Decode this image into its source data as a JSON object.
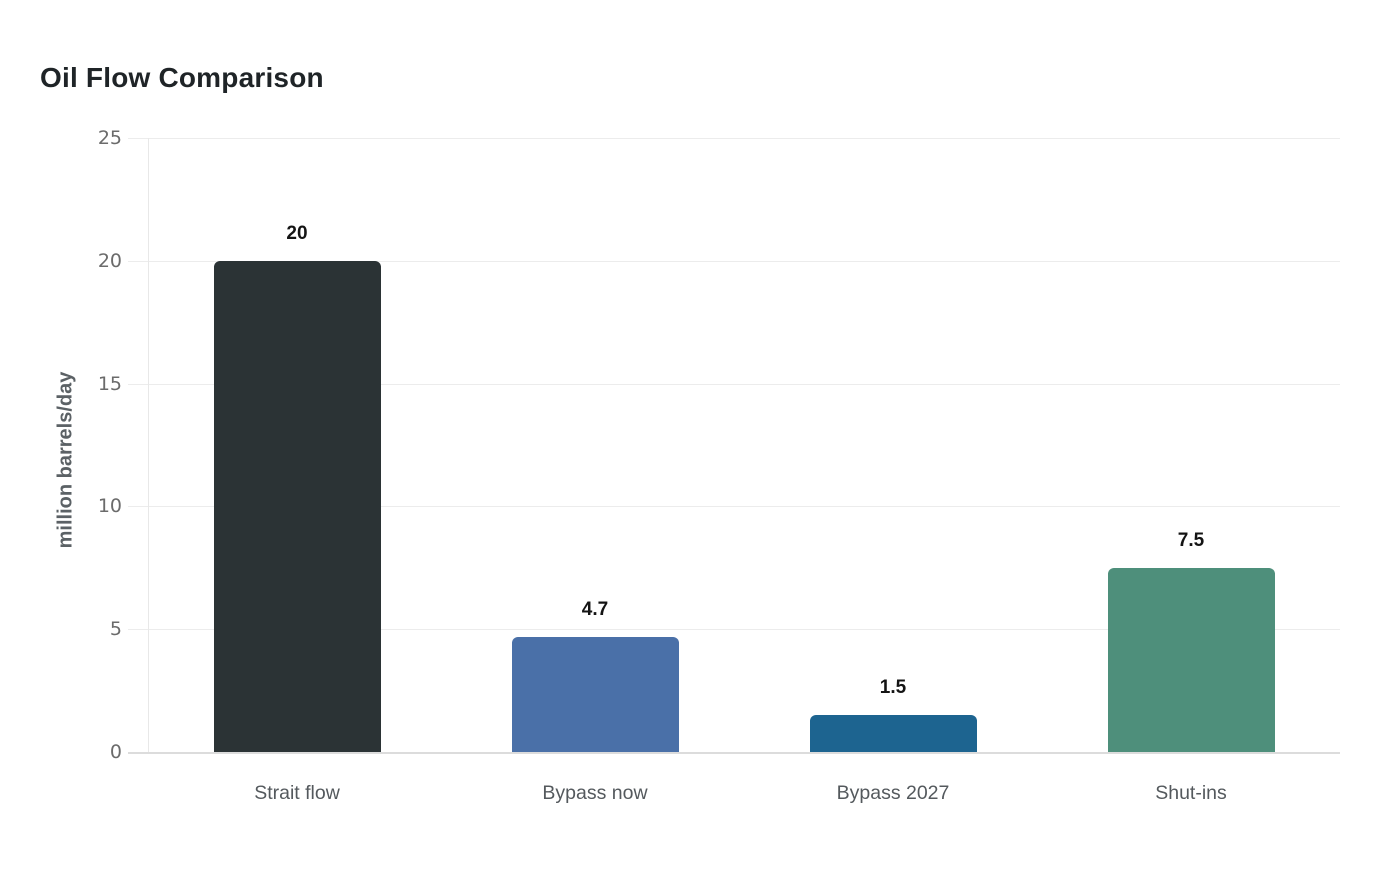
{
  "chart_data": {
    "type": "bar",
    "title": "Oil Flow Comparison",
    "categories": [
      "Strait flow",
      "Bypass now",
      "Bypass 2027",
      "Shut-ins"
    ],
    "values": [
      20,
      4.7,
      1.5,
      7.5
    ],
    "value_labels": [
      "20",
      "4.7",
      "1.5",
      "7.5"
    ],
    "bar_colors": [
      "#2b3335",
      "#4a70a8",
      "#1d6490",
      "#4e8f7b"
    ],
    "xlabel": "",
    "ylabel": "million barrels/day",
    "ylim": [
      0,
      25
    ],
    "yticks": [
      0,
      5,
      10,
      15,
      20,
      25
    ],
    "grid": true,
    "legend": false,
    "colors": {
      "background": "#ffffff",
      "title": "#1f2427",
      "gridline": "#ececec",
      "baseline": "#dcdcdc",
      "axis_line": "#e8e8e8",
      "tick_label": "#6b6b6b",
      "axis_label": "#5b6165",
      "category_label": "#54595d",
      "value_label": "#141414"
    }
  }
}
